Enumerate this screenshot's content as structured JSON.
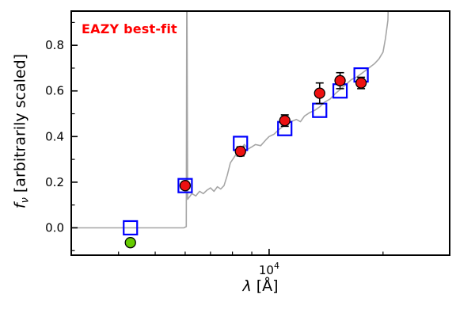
{
  "chart_data": {
    "type": "line+scatter",
    "title": "EAZY best-fit",
    "annotation": {
      "text": "EAZY best-fit",
      "color": "#ff0000"
    },
    "xlabel": "λ [Å]",
    "xlabel_parts": {
      "symbol": "λ",
      "rest": " [Å]"
    },
    "ylabel": "fν [arbitrarily scaled]",
    "ylabel_parts": {
      "symbol": "f",
      "sub": "ν",
      "rest": " [arbitrarily scaled]"
    },
    "xscale": "log",
    "xlim": [
      3000,
      30000
    ],
    "ylim": [
      -0.12,
      0.95
    ],
    "yticks": [
      0.0,
      0.2,
      0.4,
      0.6,
      0.8
    ],
    "yticks_minor": [
      -0.1,
      0.1,
      0.3,
      0.5,
      0.7,
      0.9
    ],
    "xticks_minor": [
      4000,
      5000,
      6000,
      7000,
      8000,
      9000,
      20000,
      30000
    ],
    "xtick_major": {
      "value": 10000,
      "base": "10",
      "exp": "4"
    },
    "grid": false,
    "legend": false,
    "frame_color": "#000000",
    "series": [
      {
        "name": "model-spectrum",
        "type": "line",
        "color": "#a6a6a6",
        "width": 1.6,
        "x": [
          3000,
          5950,
          6040,
          6060,
          6090,
          6250,
          6400,
          6550,
          6700,
          6850,
          7000,
          7150,
          7300,
          7450,
          7600,
          7750,
          7900,
          8050,
          8200,
          8400,
          8600,
          8800,
          9000,
          9200,
          9500,
          9800,
          10000,
          10300,
          10600,
          11000,
          11400,
          11800,
          12100,
          12400,
          12800,
          13200,
          13600,
          14000,
          14500,
          15000,
          15500,
          16000,
          16500,
          17000,
          17500,
          18000,
          18500,
          19000,
          19500,
          20000,
          20300,
          20600,
          20800
        ],
        "y": [
          0.0,
          0.0,
          0.005,
          1.2,
          0.125,
          0.15,
          0.14,
          0.16,
          0.15,
          0.165,
          0.175,
          0.16,
          0.18,
          0.17,
          0.185,
          0.23,
          0.285,
          0.305,
          0.325,
          0.345,
          0.365,
          0.345,
          0.355,
          0.365,
          0.36,
          0.385,
          0.4,
          0.41,
          0.43,
          0.45,
          0.465,
          0.475,
          0.465,
          0.49,
          0.505,
          0.515,
          0.53,
          0.55,
          0.565,
          0.59,
          0.61,
          0.63,
          0.65,
          0.66,
          0.675,
          0.69,
          0.705,
          0.72,
          0.74,
          0.77,
          0.83,
          0.91,
          1.2
        ]
      },
      {
        "name": "model-photometry",
        "type": "scatter",
        "marker": "square-open",
        "color": "#0000ff",
        "size": 17,
        "x": [
          4300,
          6000,
          8400,
          11000,
          13600,
          15400,
          17500
        ],
        "y": [
          0.0,
          0.185,
          0.37,
          0.435,
          0.515,
          0.6,
          0.67
        ]
      },
      {
        "name": "observed-photometry",
        "type": "scatter",
        "marker": "circle",
        "color": "#ee1111",
        "edge": "#000000",
        "size": 13,
        "x": [
          6000,
          8400,
          11000,
          13600,
          15400,
          17500
        ],
        "y": [
          0.185,
          0.335,
          0.47,
          0.59,
          0.645,
          0.635
        ],
        "yerr": [
          0.015,
          0.02,
          0.025,
          0.045,
          0.035,
          0.025
        ]
      },
      {
        "name": "low-significance-point",
        "type": "scatter",
        "marker": "circle",
        "color": "#66cc00",
        "edge": "#000000",
        "size": 13,
        "x": [
          4300
        ],
        "y": [
          -0.065
        ]
      }
    ]
  }
}
